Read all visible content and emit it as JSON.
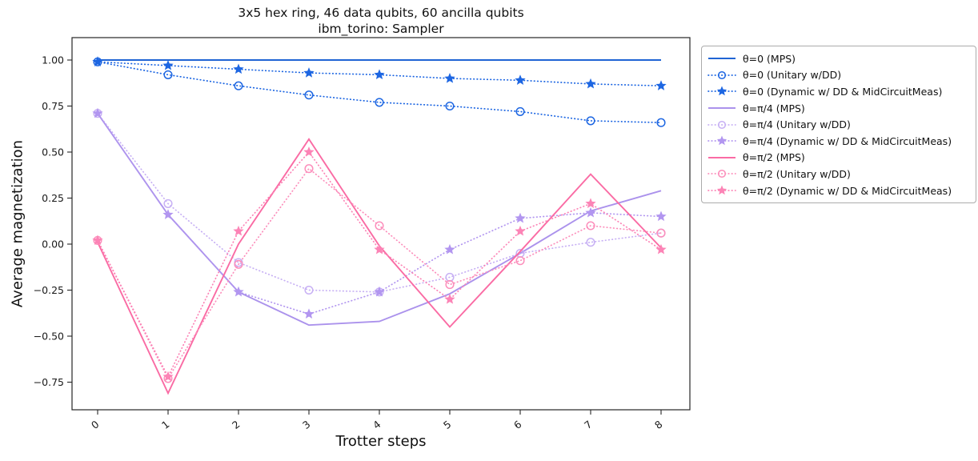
{
  "title": {
    "line1": "3x5 hex ring, 46 data qubits, 60 ancilla qubits",
    "line2": "ibm_torino: Sampler"
  },
  "chart_data": {
    "type": "line",
    "title": "3x5 hex ring, 46 data qubits, 60 ancilla qubits",
    "subtitle": "ibm_torino: Sampler",
    "xlabel": "Trotter steps",
    "ylabel": "Average magnetization",
    "x": [
      0,
      1,
      2,
      3,
      4,
      5,
      6,
      7,
      8
    ],
    "xticks": [
      0,
      1,
      2,
      3,
      4,
      5,
      6,
      7,
      8
    ],
    "xtick_labels": [
      "0",
      "1",
      "2",
      "3",
      "4",
      "5",
      "6",
      "7",
      "8"
    ],
    "yticks": [
      1.0,
      0.75,
      0.5,
      0.25,
      0.0,
      -0.25,
      -0.5,
      -0.75
    ],
    "ytick_labels": [
      "1.00",
      "0.75",
      "0.50",
      "0.25",
      "0.00",
      "−0.25",
      "−0.50",
      "−0.75"
    ],
    "ylim": [
      -0.9,
      1.12
    ],
    "grid": false,
    "legend_position": "outside-right",
    "axis_color": "#262626",
    "series": [
      {
        "name": "θ=0 (MPS)",
        "color": "#2064d4",
        "style": "solid",
        "marker": "none",
        "values": [
          1.0,
          1.0,
          1.0,
          1.0,
          1.0,
          1.0,
          1.0,
          1.0,
          1.0
        ]
      },
      {
        "name": "θ=0 (Unitary w/DD)",
        "color": "#1d66e2",
        "style": "dotted",
        "marker": "circle-open",
        "values": [
          0.99,
          0.92,
          0.86,
          0.81,
          0.77,
          0.75,
          0.72,
          0.67,
          0.66
        ]
      },
      {
        "name": "θ=0 (Dynamic w/ DD & MidCircuitMeas)",
        "color": "#1d66e2",
        "style": "dotted",
        "marker": "star",
        "values": [
          0.99,
          0.97,
          0.95,
          0.93,
          0.92,
          0.9,
          0.89,
          0.87,
          0.86
        ]
      },
      {
        "name": "θ=π/4 (MPS)",
        "color": "#ab92ec",
        "style": "solid",
        "marker": "none",
        "values": [
          0.71,
          0.16,
          -0.26,
          -0.44,
          -0.42,
          -0.27,
          -0.05,
          0.18,
          0.29
        ]
      },
      {
        "name": "θ=π/4 (Unitary w/DD)",
        "color": "#c7b0f4",
        "style": "dotted",
        "marker": "circle-open",
        "values": [
          0.71,
          0.22,
          -0.1,
          -0.25,
          -0.26,
          -0.18,
          -0.05,
          0.01,
          0.06
        ]
      },
      {
        "name": "θ=π/4 (Dynamic w/ DD & MidCircuitMeas)",
        "color": "#b296f0",
        "style": "dotted",
        "marker": "star",
        "values": [
          0.71,
          0.16,
          -0.26,
          -0.38,
          -0.26,
          -0.03,
          0.14,
          0.17,
          0.15
        ]
      },
      {
        "name": "θ=π/2 (MPS)",
        "color": "#fa6ba4",
        "style": "solid",
        "marker": "none",
        "values": [
          0.01,
          -0.81,
          0.0,
          0.57,
          -0.01,
          -0.45,
          -0.04,
          0.38,
          -0.02
        ]
      },
      {
        "name": "θ=π/2 (Unitary w/DD)",
        "color": "#fc8ebb",
        "style": "dotted",
        "marker": "circle-open",
        "values": [
          0.02,
          -0.73,
          -0.11,
          0.41,
          0.1,
          -0.22,
          -0.09,
          0.1,
          0.06
        ]
      },
      {
        "name": "θ=π/2 (Dynamic w/ DD & MidCircuitMeas)",
        "color": "#fc84b6",
        "style": "dotted",
        "marker": "star",
        "values": [
          0.02,
          -0.72,
          0.07,
          0.5,
          -0.03,
          -0.3,
          0.07,
          0.22,
          -0.03
        ]
      }
    ]
  }
}
